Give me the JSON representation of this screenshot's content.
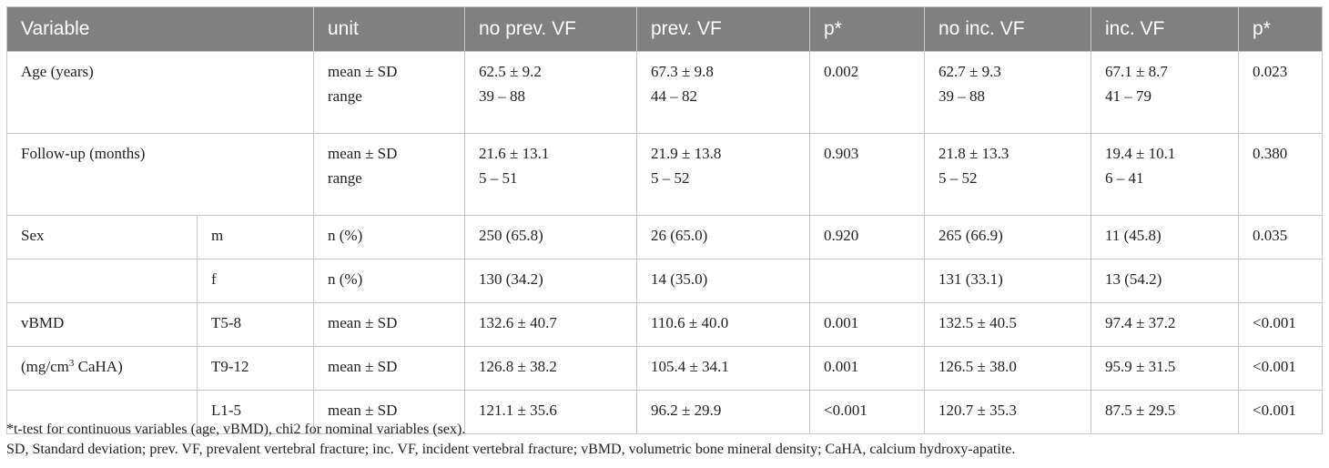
{
  "header": [
    "Variable",
    "unit",
    "no prev. VF",
    "prev. VF",
    "p*",
    "no inc. VF",
    "inc. VF",
    "p*"
  ],
  "rows": {
    "age": {
      "variable": "Age (years)",
      "unit_1": "mean ± SD",
      "unit_2": "range",
      "no_prev_1": "62.5 ± 9.2",
      "no_prev_2": "39 – 88",
      "prev_1": "67.3 ± 9.8",
      "prev_2": "44 – 82",
      "p1": "0.002",
      "no_inc_1": "62.7 ± 9.3",
      "no_inc_2": "39 – 88",
      "inc_1": "67.1 ± 8.7",
      "inc_2": "41 – 79",
      "p2": "0.023"
    },
    "followup": {
      "variable": "Follow-up (months)",
      "unit_1": "mean ± SD",
      "unit_2": "range",
      "no_prev_1": "21.6 ± 13.1",
      "no_prev_2": "5 – 51",
      "prev_1": "21.9 ± 13.8",
      "prev_2": "5 – 52",
      "p1": "0.903",
      "no_inc_1": "21.8 ± 13.3",
      "no_inc_2": "5 – 52",
      "inc_1": "19.4 ± 10.1",
      "inc_2": "6 – 41",
      "p2": "0.380"
    },
    "sex_m": {
      "variable": "Sex",
      "sub": "m",
      "unit": "n (%)",
      "no_prev": "250 (65.8)",
      "prev": "26 (65.0)",
      "p1": "0.920",
      "no_inc": "265 (66.9)",
      "inc": "11 (45.8)",
      "p2": "0.035"
    },
    "sex_f": {
      "variable": "",
      "sub": "f",
      "unit": "n (%)",
      "no_prev": "130 (34.2)",
      "prev": "14 (35.0)",
      "p1": "",
      "no_inc": "131 (33.1)",
      "inc": "13 (54.2)",
      "p2": ""
    },
    "vbmd_t5": {
      "variable": "vBMD",
      "sub": "T5-8",
      "unit": "mean ± SD",
      "no_prev": "132.6 ± 40.7",
      "prev": "110.6 ± 40.0",
      "p1": "0.001",
      "no_inc": "132.5 ± 40.5",
      "inc": "97.4 ± 37.2",
      "p2": "<0.001"
    },
    "vbmd_t9": {
      "variable_pre": "(mg/cm",
      "variable_sup": "3",
      "variable_post": " CaHA)",
      "sub": "T9-12",
      "unit": "mean ± SD",
      "no_prev": "126.8 ± 38.2",
      "prev": "105.4 ± 34.1",
      "p1": "0.001",
      "no_inc": "126.5 ± 38.0",
      "inc": "95.9 ± 31.5",
      "p2": "<0.001"
    },
    "vbmd_l1": {
      "variable": "",
      "sub": "L1-5",
      "unit": "mean ± SD",
      "no_prev": "121.1 ± 35.6",
      "prev": "96.2 ± 29.9",
      "p1": "<0.001",
      "no_inc": "120.7 ± 35.3",
      "inc": "87.5 ± 29.5",
      "p2": "<0.001"
    }
  },
  "notes": [
    "*t-test for continuous variables (age, vBMD), chi2 for nominal variables (sex).",
    "SD, Standard deviation; prev. VF, prevalent vertebral fracture; inc. VF, incident vertebral fracture; vBMD, volumetric bone mineral density; CaHA, calcium hydroxy-apatite."
  ],
  "colors": {
    "header_bg": "#808080",
    "header_text": "#ffffff",
    "border": "#c8c8c8"
  }
}
